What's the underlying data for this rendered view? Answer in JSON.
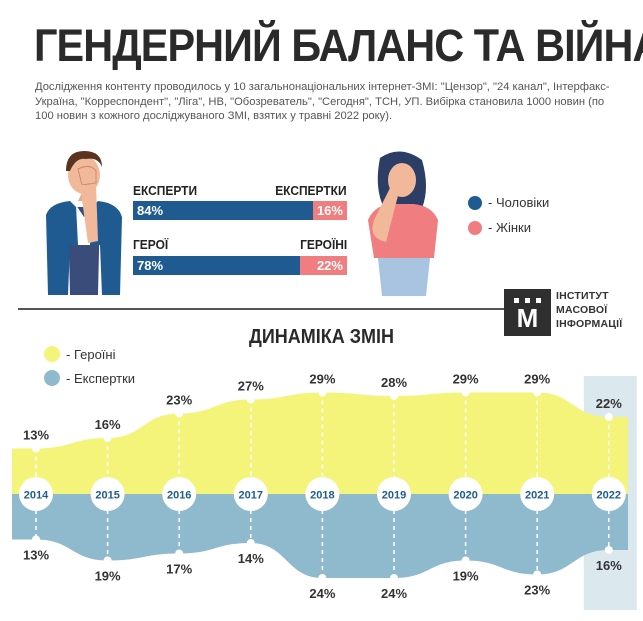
{
  "title": "ГЕНДЕРНИЙ БАЛАНС ТА ВІЙНА",
  "intro": "Дослідження контенту проводилось у 10 загальнонаціональних інтернет-ЗМІ: \"Цензор\", \"24 канал\", Інтерфакс-Україна, \"Корреспондент\", \"Ліга\", НВ, \"Обозреватель\", \"Сегодня\", ТСН, УП. Вибірка становила 1000 новин (по 100 новин з кожного досліджуваного ЗМІ, взятих у травні 2022 року).",
  "colors": {
    "men": "#1f5b91",
    "women": "#f07d7f",
    "heroines": "#f4f37a",
    "experts_women": "#8fb9cc",
    "highlight": "#dbe8ee"
  },
  "bars": [
    {
      "left_label": "ЕКСПЕРТИ",
      "right_label": "ЕКСПЕРТКИ",
      "men_value": 84,
      "women_value": 16,
      "men_text": "84%",
      "women_text": "16%"
    },
    {
      "left_label": "ГЕРОЇ",
      "right_label": "ГЕРОЇНІ",
      "men_value": 78,
      "women_value": 22,
      "men_text": "78%",
      "women_text": "22%"
    }
  ],
  "legend_top": [
    {
      "label": "- Чоловіки",
      "color": "#1f5b91"
    },
    {
      "label": "- Жінки",
      "color": "#f07d7f"
    }
  ],
  "logo": {
    "mark": "M",
    "line1": "ІНСТИТУТ",
    "line2": "МАСОВОЇ",
    "line3": "ІНФОРМАЦІЇ"
  },
  "subtitle": "ДИНАМІКА ЗМІН",
  "legend_bottom": [
    {
      "label": "- Героїні",
      "color": "#f4f37a"
    },
    {
      "label": "- Експертки",
      "color": "#8fb9cc"
    }
  ],
  "chart_data": {
    "type": "area",
    "categories": [
      "2014",
      "2015",
      "2016",
      "2017",
      "2018",
      "2019",
      "2020",
      "2021",
      "2022"
    ],
    "series": [
      {
        "name": "Героїні",
        "values": [
          13,
          16,
          23,
          27,
          29,
          28,
          29,
          29,
          22
        ],
        "labels": [
          "13%",
          "16%",
          "23%",
          "27%",
          "29%",
          "28%",
          "29%",
          "29%",
          "22%"
        ]
      },
      {
        "name": "Експертки",
        "values": [
          13,
          19,
          17,
          14,
          24,
          24,
          19,
          23,
          16
        ],
        "labels": [
          "13%",
          "19%",
          "17%",
          "14%",
          "24%",
          "24%",
          "19%",
          "23%",
          "16%"
        ]
      }
    ],
    "highlighted_category": "2022"
  }
}
